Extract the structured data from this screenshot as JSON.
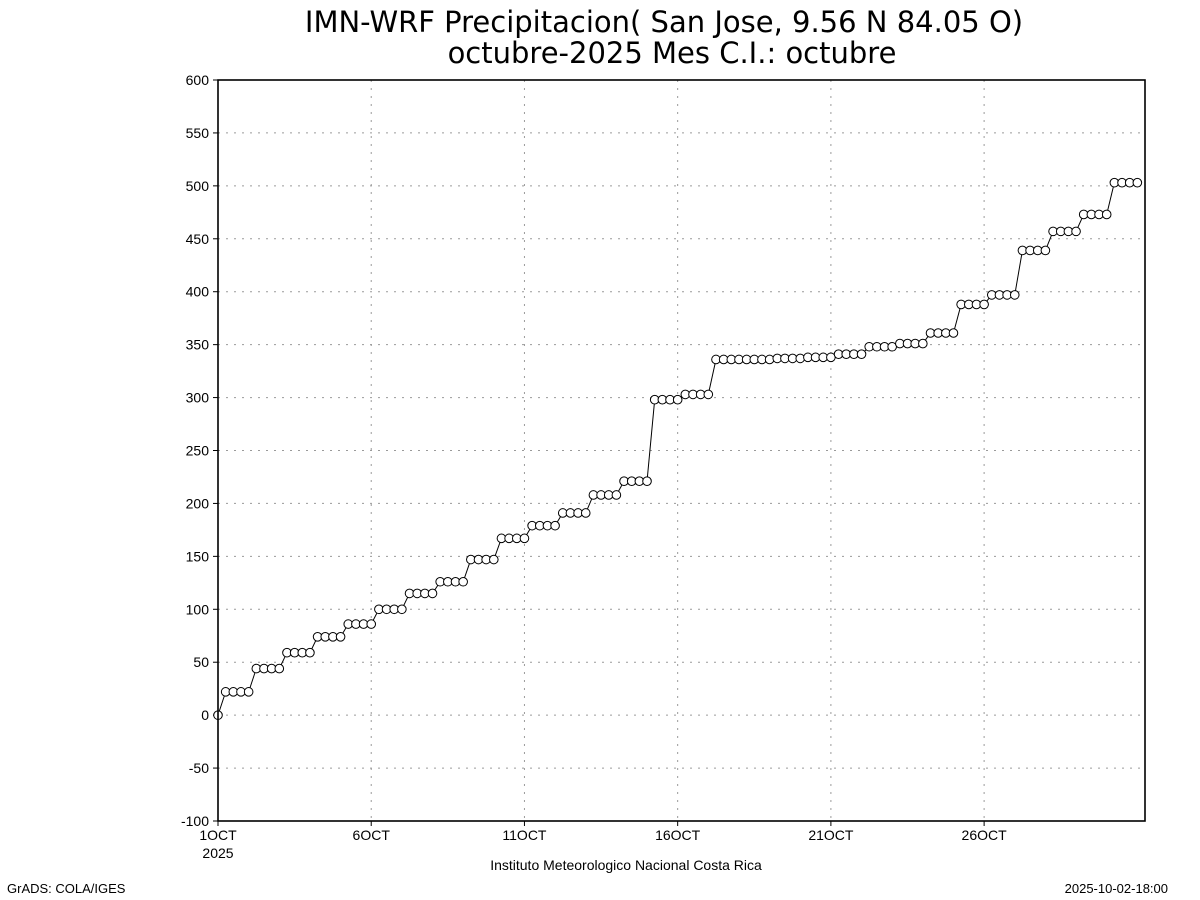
{
  "chart_data": {
    "type": "line",
    "title": "IMN-WRF  Precipitacion( San Jose, 9.56  N 84.05  O)",
    "subtitle": "octubre-2025 Mes C.I.: octubre",
    "xlabel": "",
    "ylabel": "",
    "ylim": [
      -100,
      600
    ],
    "yticks": [
      -100,
      -50,
      0,
      50,
      100,
      150,
      200,
      250,
      300,
      350,
      400,
      450,
      500,
      550,
      600
    ],
    "xlim": [
      1,
      31.25
    ],
    "xticks": [
      {
        "value": 1,
        "label": "1OCT",
        "sublabel": "2025"
      },
      {
        "value": 6,
        "label": "6OCT",
        "sublabel": ""
      },
      {
        "value": 11,
        "label": "11OCT",
        "sublabel": ""
      },
      {
        "value": 16,
        "label": "16OCT",
        "sublabel": ""
      },
      {
        "value": 21,
        "label": "21OCT",
        "sublabel": ""
      },
      {
        "value": 26,
        "label": "26OCT",
        "sublabel": ""
      }
    ],
    "x_units": "day of October 2025 (6-hourly steps)",
    "grid": true,
    "marker": "open-circle",
    "series": [
      {
        "values": [
          0,
          22,
          22,
          22,
          22,
          44,
          44,
          44,
          44,
          59,
          59,
          59,
          59,
          74,
          74,
          74,
          74,
          86,
          86,
          86,
          86,
          100,
          100,
          100,
          100,
          115,
          115,
          115,
          115,
          126,
          126,
          126,
          126,
          147,
          147,
          147,
          147,
          167,
          167,
          167,
          167,
          179,
          179,
          179,
          179,
          191,
          191,
          191,
          191,
          208,
          208,
          208,
          208,
          221,
          221,
          221,
          221,
          298,
          298,
          298,
          298,
          303,
          303,
          303,
          303,
          336,
          336,
          336,
          336,
          336,
          336,
          336,
          336,
          337,
          337,
          337,
          337,
          338,
          338,
          338,
          338,
          341,
          341,
          341,
          341,
          348,
          348,
          348,
          348,
          351,
          351,
          351,
          351,
          361,
          361,
          361,
          361,
          388,
          388,
          388,
          388,
          397,
          397,
          397,
          397,
          439,
          439,
          439,
          439,
          457,
          457,
          457,
          457,
          473,
          473,
          473,
          473,
          503,
          503,
          503,
          503
        ]
      }
    ]
  },
  "footer": {
    "institution": "Instituto Meteorologico Nacional Costa Rica",
    "software": "GrADS: COLA/IGES",
    "run_time": "2025-10-02-18:00"
  }
}
